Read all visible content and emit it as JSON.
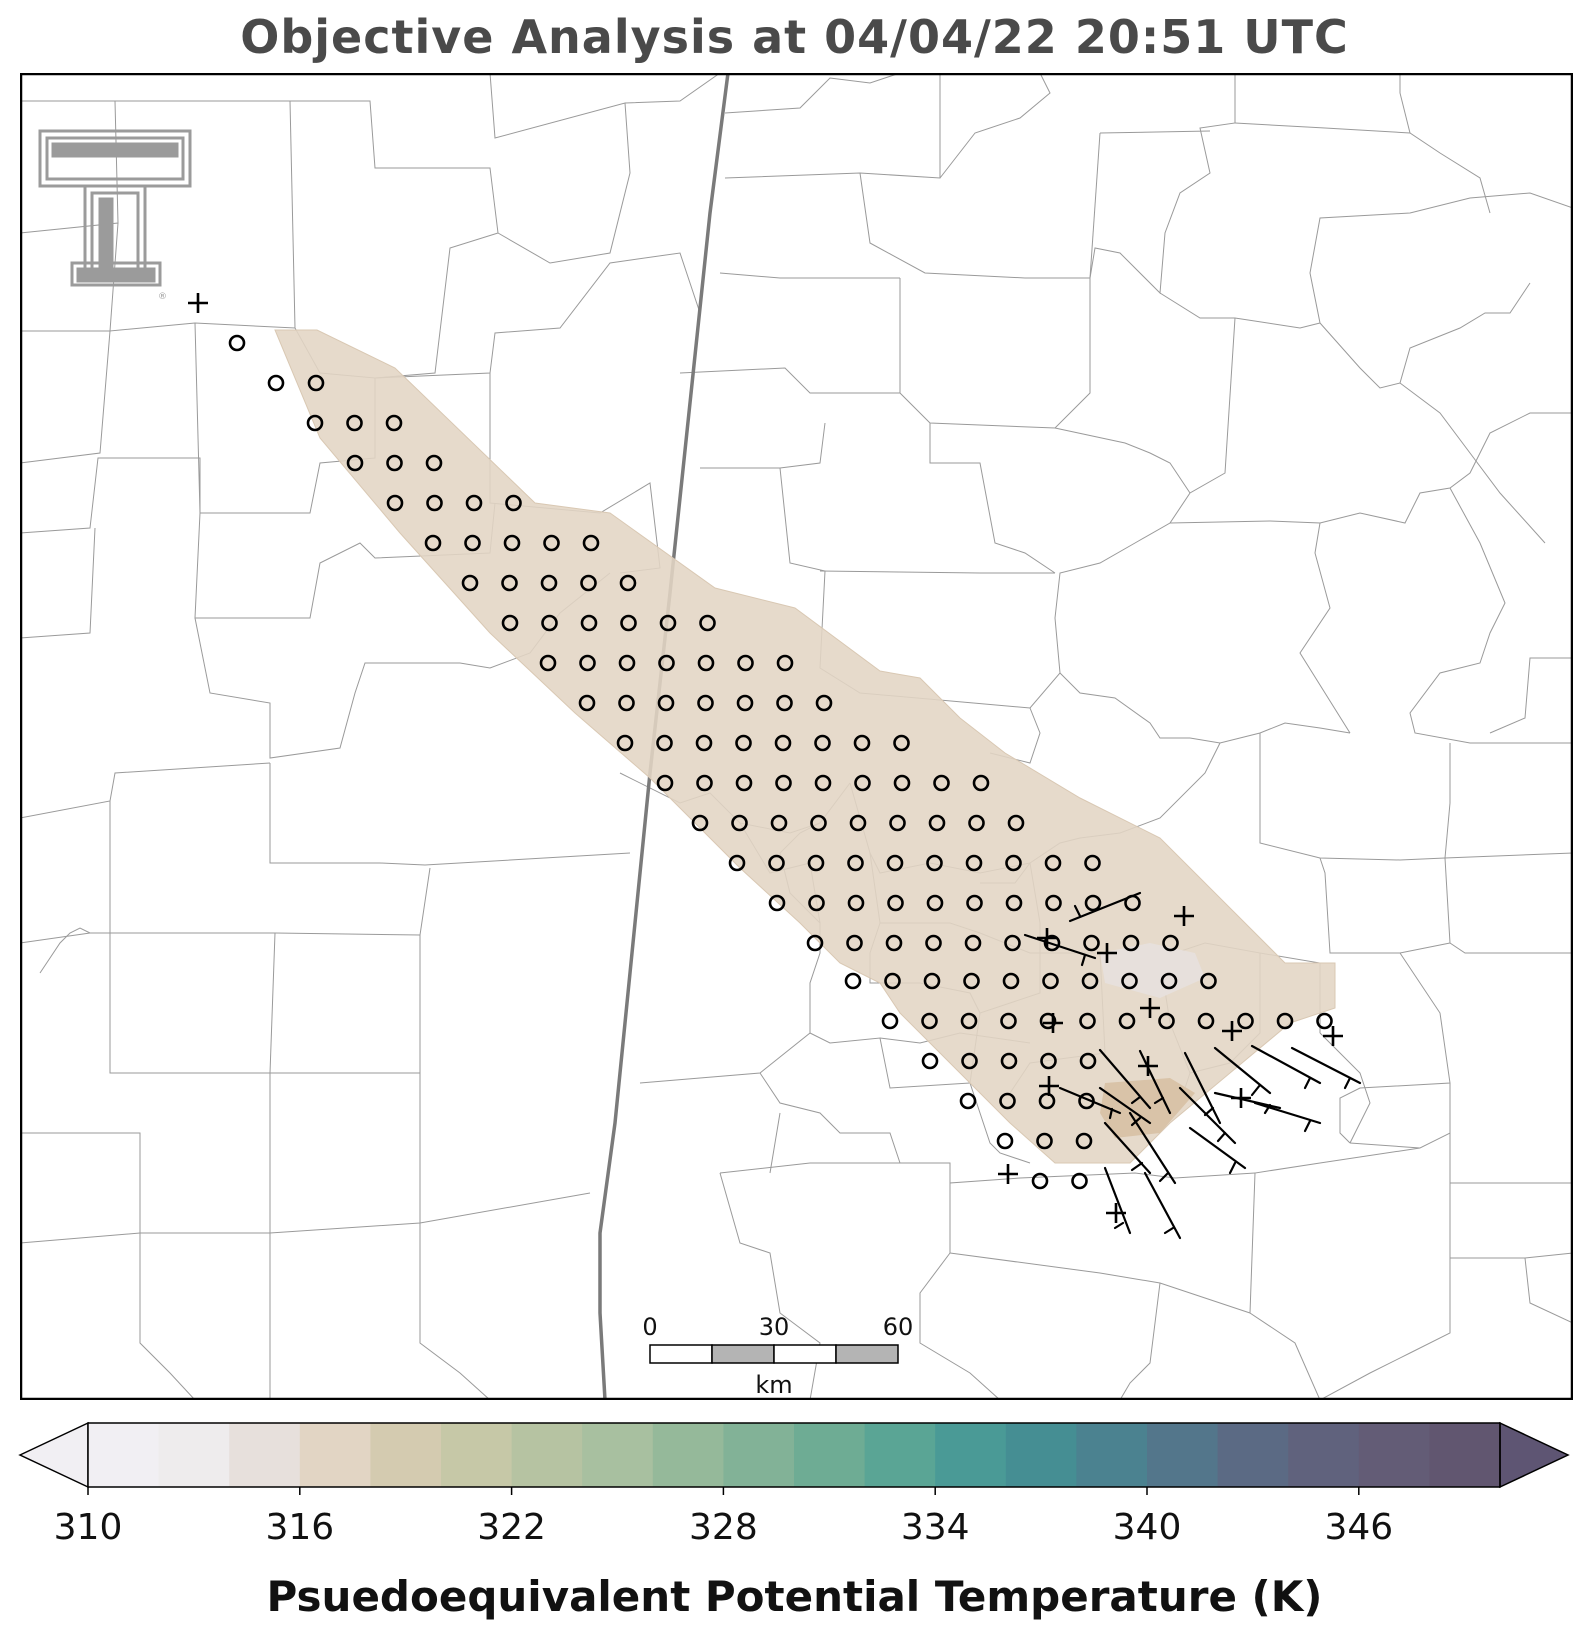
{
  "title": "Objective Analysis at 04/04/22 20:51 UTC",
  "logo": {
    "name": "texas-tech-double-t-logo",
    "mark": "®"
  },
  "scale_bar": {
    "ticks": [
      "0",
      "30",
      "60"
    ],
    "unit": "km"
  },
  "colorbar": {
    "label": "Psuedoequivalent Potential Temperature (K)",
    "min": 310,
    "max": 350,
    "step": 2,
    "tick_labels": [
      "310",
      "316",
      "322",
      "328",
      "334",
      "340",
      "346"
    ],
    "tick_values": [
      310,
      316,
      322,
      328,
      334,
      340,
      346
    ],
    "colors": [
      "#f1eff3",
      "#eeeced",
      "#e7e0dc",
      "#e2d5c4",
      "#d4cbb0",
      "#c6c8a7",
      "#b6c3a2",
      "#a8c0a0",
      "#95b99a",
      "#82b297",
      "#6eac94",
      "#5aa595",
      "#4a9a96",
      "#458e93",
      "#4b8290",
      "#53768b",
      "#5b6a84",
      "#60627d",
      "#635c76",
      "#615670"
    ],
    "under_color": "#f1eff3",
    "over_color": "#5e5573"
  },
  "analysis_field": {
    "fill_color": "#e2d5c4",
    "variable": "theta_e"
  },
  "station_markers": {
    "calm_symbol": "o",
    "missing_symbol": "+"
  }
}
